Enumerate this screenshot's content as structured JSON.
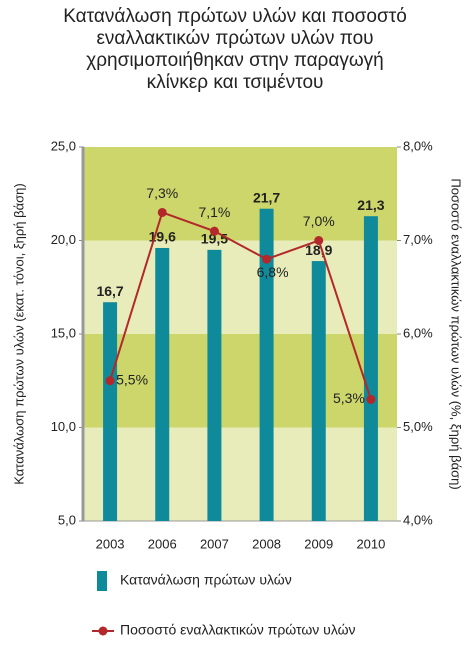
{
  "chart_data": {
    "type": "bar",
    "title": "Κατανάλωση πρώτων υλών και ποσοστό εναλλακτικών πρώτων υλών που χρησιμοποιήθηκαν στην παραγωγή κλίνκερ και τσιμέντου",
    "y_label": "Κατανάλωση πρώτων υλών (εκατ. τόνοι, ξηρή βάση)",
    "y2_label": "Ποσοστό εναλλακτικών πρώτων υλών (%, ξηρή βάση)",
    "categories": [
      "2003",
      "2006",
      "2007",
      "2008",
      "2009",
      "2010"
    ],
    "series": [
      {
        "name": "Κατανάλωση πρώτων υλών",
        "type": "bar",
        "color": "#0e8a9a",
        "values": [
          16.7,
          19.6,
          19.5,
          21.7,
          18.9,
          21.3
        ],
        "value_labels": [
          "16,7",
          "19,6",
          "19,5",
          "21,7",
          "18,9",
          "21,3"
        ]
      },
      {
        "name": "Ποσοστό εναλλακτικών πρώτων υλών",
        "type": "line",
        "axis": "y2",
        "color": "#b3282a",
        "values": [
          5.5,
          7.3,
          7.1,
          6.8,
          7.0,
          5.3
        ],
        "value_labels": [
          "5,5%",
          "7,3%",
          "7,1%",
          "6,8%",
          "7,0%",
          "5,3%"
        ]
      }
    ],
    "ylim": [
      5,
      25
    ],
    "yticks": [
      {
        "value": 5,
        "label": "5,0"
      },
      {
        "value": 10,
        "label": "10,0"
      },
      {
        "value": 15,
        "label": "15,0"
      },
      {
        "value": 20,
        "label": "20,0"
      },
      {
        "value": 25,
        "label": "25,0"
      }
    ],
    "y2lim": [
      4,
      8
    ],
    "y2ticks": [
      {
        "value": 4,
        "label": "4,0%"
      },
      {
        "value": 5,
        "label": "5,0%"
      },
      {
        "value": 6,
        "label": "6,0%"
      },
      {
        "value": 7,
        "label": "7,0%"
      },
      {
        "value": 8,
        "label": "8,0%"
      }
    ],
    "band_colors": [
      "#e8ecba",
      "#cdd66b"
    ],
    "legend": "bottom"
  }
}
